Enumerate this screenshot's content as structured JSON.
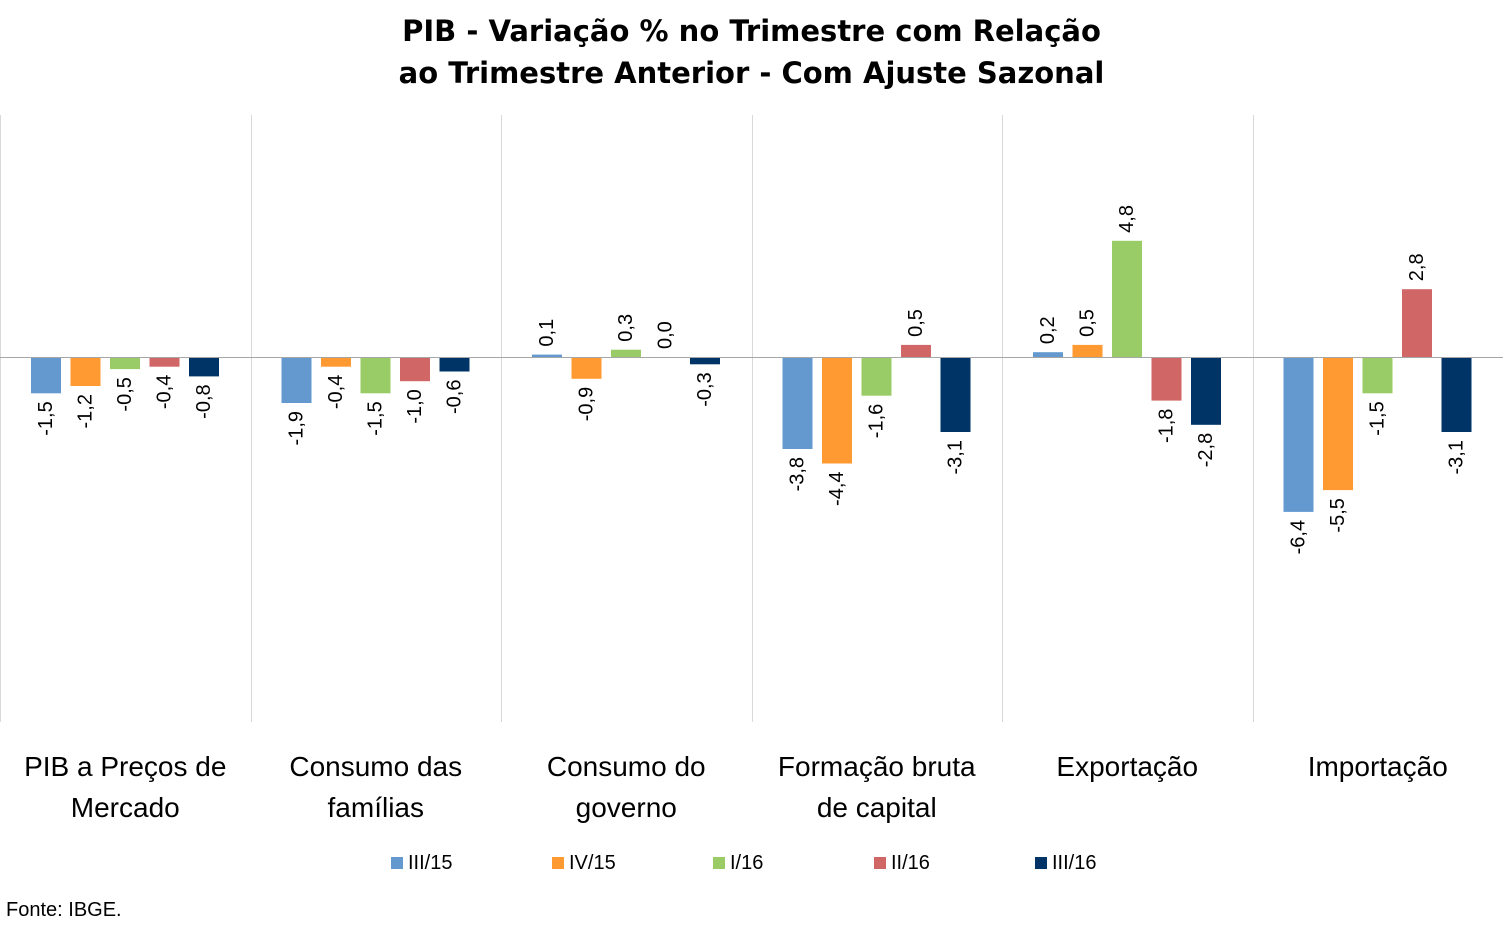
{
  "chart_data": {
    "type": "bar",
    "title_lines": [
      "PIB - Variação % no Trimestre com Relação",
      "ao Trimestre Anterior - Com Ajuste Sazonal"
    ],
    "categories": [
      [
        "PIB a Preços de",
        "Mercado"
      ],
      [
        "Consumo das",
        "famílias"
      ],
      [
        "Consumo do",
        "governo"
      ],
      [
        "Formação bruta",
        "de capital"
      ],
      [
        "Exportação"
      ],
      [
        "Importação"
      ]
    ],
    "series": [
      {
        "name": "III/15",
        "color": "#6399CF",
        "values": [
          -1.5,
          -1.9,
          0.1,
          -3.8,
          0.2,
          -6.4
        ]
      },
      {
        "name": "IV/15",
        "color": "#FF9A33",
        "values": [
          -1.2,
          -0.4,
          -0.9,
          -4.4,
          0.5,
          -5.5
        ]
      },
      {
        "name": "I/16",
        "color": "#99CC66",
        "values": [
          -0.5,
          -1.5,
          0.3,
          -1.6,
          4.8,
          -1.5
        ]
      },
      {
        "name": "II/16",
        "color": "#D06666",
        "values": [
          -0.4,
          -1.0,
          0.0,
          0.5,
          -1.8,
          2.8
        ]
      },
      {
        "name": "III/16",
        "color": "#003366",
        "values": [
          -0.8,
          -0.6,
          -0.3,
          -3.1,
          -2.8,
          -3.1
        ]
      }
    ],
    "data_labels": [
      [
        "-1,5",
        "-1,9",
        "0,1",
        "-3,8",
        "0,2",
        "-6,4"
      ],
      [
        "-1,2",
        "-0,4",
        "-0,9",
        "-4,4",
        "0,5",
        "-5,5"
      ],
      [
        "-0,5",
        "-1,5",
        "0,3",
        "-1,6",
        "4,8",
        "-1,5"
      ],
      [
        "-0,4",
        "-1,0",
        "0,0",
        "0,5",
        "-1,8",
        "2,8"
      ],
      [
        "-0,8",
        "-0,6",
        "-0,3",
        "-3,1",
        "-2,8",
        "-3,1"
      ]
    ],
    "ylim": [
      -15,
      10
    ],
    "grid": false,
    "legend_position": "bottom",
    "source_note": "Fonte: IBGE."
  }
}
